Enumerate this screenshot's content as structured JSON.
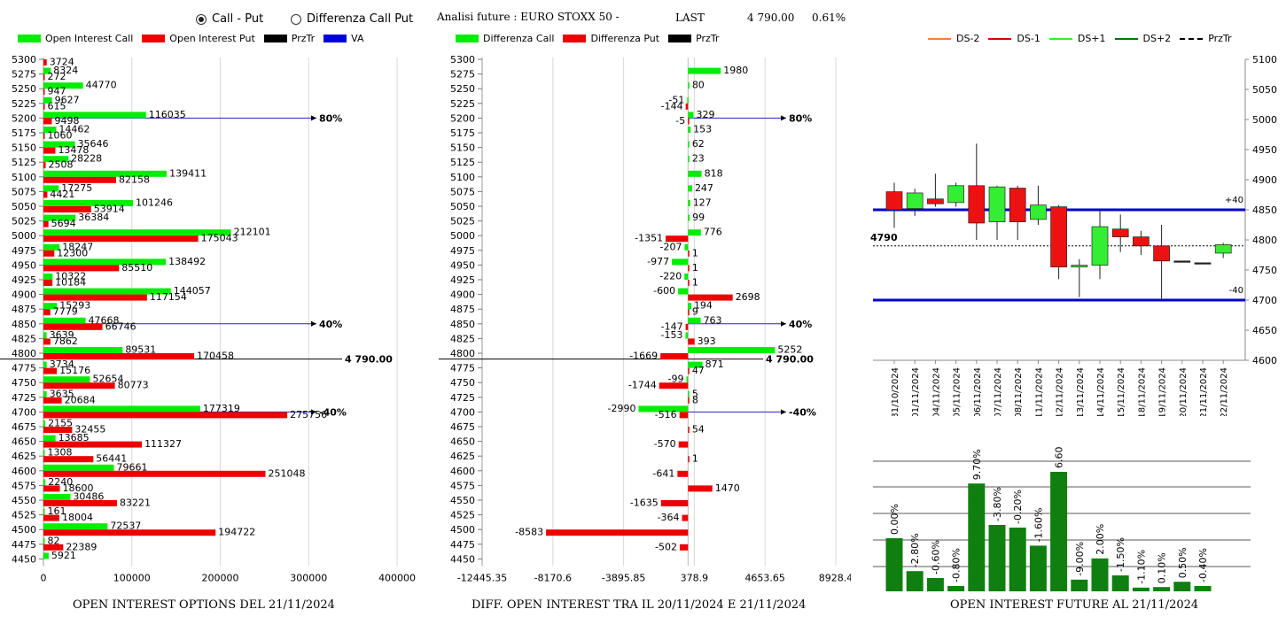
{
  "header": {
    "radio_call_put": "Call - Put",
    "radio_diff": "Differenza Call Put",
    "title": "Analisi future : EURO STOXX 50 -",
    "last_label": "LAST",
    "last_value": "4 790.00",
    "last_change": "0.61%"
  },
  "left": {
    "legend": [
      "Open Interest Call",
      "Open Interest Put",
      "PrzTr",
      "VA"
    ],
    "footer": "OPEN INTEREST OPTIONS DEL 21/11/2024"
  },
  "middle": {
    "legend": [
      "Differenza Call",
      "Differenza Put",
      "PrzTr"
    ],
    "footer": "DIFF. OPEN INTEREST TRA IL 20/11/2024 E 21/11/2024"
  },
  "right": {
    "legend": [
      "DS-2",
      "DS-1",
      "DS+1",
      "DS+2",
      "PrzTr"
    ],
    "footer": "OPEN INTEREST FUTURE AL 21/11/2024"
  },
  "chart_data": [
    {
      "type": "bar",
      "orientation": "horizontal",
      "strikes": [
        5300,
        5275,
        5250,
        5225,
        5200,
        5175,
        5150,
        5125,
        5100,
        5075,
        5050,
        5025,
        5000,
        4975,
        4950,
        4925,
        4900,
        4875,
        4850,
        4825,
        4800,
        4775,
        4750,
        4725,
        4700,
        4675,
        4650,
        4625,
        4600,
        4575,
        4550,
        4525,
        4500,
        4475,
        4450
      ],
      "series": [
        {
          "name": "Open Interest Call",
          "color": "#00ee00",
          "values": [
            null,
            8324,
            44770,
            9627,
            116035,
            14462,
            35646,
            28228,
            139411,
            17275,
            101246,
            36384,
            212101,
            18247,
            138492,
            10322,
            144057,
            15293,
            47668,
            3639,
            89531,
            3734,
            52654,
            3635,
            177319,
            2155,
            13685,
            1308,
            79661,
            2240,
            30486,
            161,
            72537,
            82,
            5921
          ]
        },
        {
          "name": "Open Interest Put",
          "color": "#ee0000",
          "values": [
            3724,
            272,
            947,
            615,
            9498,
            1060,
            13478,
            2508,
            82158,
            4421,
            53914,
            5694,
            175043,
            12300,
            85510,
            10184,
            117154,
            7779,
            66746,
            7862,
            170458,
            15176,
            80773,
            20684,
            275756,
            32455,
            111327,
            56441,
            251048,
            18600,
            83221,
            18004,
            194722,
            22389,
            null
          ]
        }
      ],
      "x_ticks": [
        "0",
        "100000",
        "200000",
        "300000",
        "400000"
      ],
      "xlim": [
        0,
        430000
      ],
      "annotations": [
        {
          "strike": 5200,
          "label": "80%"
        },
        {
          "strike": 4850,
          "label": "40%"
        },
        {
          "strike": 4700,
          "label": "-40%"
        },
        {
          "strike": 4790,
          "label": "4 790.00"
        }
      ]
    },
    {
      "type": "bar",
      "orientation": "horizontal",
      "strikes": [
        5300,
        5275,
        5250,
        5225,
        5200,
        5175,
        5150,
        5125,
        5100,
        5075,
        5050,
        5025,
        5000,
        4975,
        4950,
        4925,
        4900,
        4875,
        4850,
        4825,
        4800,
        4775,
        4750,
        4725,
        4700,
        4675,
        4650,
        4625,
        4600,
        4575,
        4550,
        4525,
        4500,
        4475,
        4450
      ],
      "series": [
        {
          "name": "Differenza Call",
          "color": "#00ee00",
          "values": [
            null,
            1980,
            80,
            -51,
            329,
            153,
            62,
            23,
            818,
            247,
            127,
            99,
            776,
            -207,
            -977,
            -220,
            -600,
            194,
            763,
            -153,
            5252,
            871,
            -99,
            5,
            -2990,
            null,
            null,
            null,
            null,
            null,
            null,
            null,
            null,
            null,
            null
          ]
        },
        {
          "name": "Differenza Put",
          "color": "#ee0000",
          "values": [
            null,
            null,
            null,
            -144,
            -5,
            null,
            null,
            null,
            null,
            null,
            null,
            null,
            -1351,
            1,
            1,
            1,
            2698,
            9,
            -147,
            393,
            -1669,
            47,
            -1744,
            8,
            -516,
            54,
            -570,
            1,
            -641,
            1470,
            -1635,
            -364,
            -8583,
            -502,
            null
          ]
        }
      ],
      "x_ticks": [
        "-12445.35",
        "-8170.6",
        "-3895.85",
        "378.9",
        "4653.65",
        "8928.4"
      ],
      "xlim": [
        -12445.35,
        8928.4
      ],
      "annotations": [
        {
          "strike": 5200,
          "label": "80%"
        },
        {
          "strike": 4850,
          "label": "40%"
        },
        {
          "strike": 4700,
          "label": "-40%"
        },
        {
          "strike": 4790,
          "label": "4 790.00"
        }
      ]
    },
    {
      "type": "candlestick",
      "dates": [
        "31/10/2024",
        "01/11/2024",
        "04/11/2024",
        "05/11/2024",
        "06/11/2024",
        "07/11/2024",
        "08/11/2024",
        "11/11/2024",
        "12/11/2024",
        "13/11/2024",
        "14/11/2024",
        "15/11/2024",
        "18/11/2024",
        "19/11/2024",
        "20/11/2024",
        "21/11/2024",
        "22/11/2024"
      ],
      "ohlc": [
        [
          4880,
          4895,
          4820,
          4850
        ],
        [
          4852,
          4885,
          4840,
          4878
        ],
        [
          4868,
          4910,
          4855,
          4860
        ],
        [
          4862,
          4895,
          4855,
          4890
        ],
        [
          4890,
          4960,
          4800,
          4828
        ],
        [
          4830,
          4890,
          4800,
          4888
        ],
        [
          4886,
          4890,
          4800,
          4830
        ],
        [
          4834,
          4890,
          4825,
          4858
        ],
        [
          4855,
          4858,
          4735,
          4755
        ],
        [
          4755,
          4768,
          4705,
          4758
        ],
        [
          4758,
          4850,
          4735,
          4822
        ],
        [
          4818,
          4842,
          4780,
          4805
        ],
        [
          4805,
          4815,
          4775,
          4790
        ],
        [
          4790,
          4825,
          4700,
          4765
        ],
        [
          4765,
          4765,
          4765,
          4765
        ],
        [
          4762,
          4762,
          4762,
          4762
        ],
        [
          4778,
          4795,
          4770,
          4792
        ]
      ],
      "y_ticks": [
        "4600",
        "4650",
        "4700",
        "4750",
        "4800",
        "4850",
        "4900",
        "4950",
        "5000",
        "5050",
        "5100"
      ],
      "ylim": [
        4600,
        5100
      ],
      "przTr": 4790,
      "przTr_label": "4790",
      "bands": [
        {
          "value": 4850,
          "label": "+40"
        },
        {
          "value": 4700,
          "label": "-40"
        }
      ]
    },
    {
      "type": "bar",
      "labels": [
        "0.00%",
        "-2.80%",
        "-0.60%",
        "-0.80%",
        "9.70%",
        "-3.80%",
        "-0.20%",
        "-1.60%",
        "6.60%",
        "-9.00%",
        "2.00%",
        "-1.50%",
        "-1.10%",
        "0.10%",
        "0.50%",
        "-0.40%"
      ],
      "values": [
        100,
        38,
        25,
        10,
        203,
        125,
        120,
        86,
        225,
        22,
        62,
        30,
        7,
        8,
        18,
        10
      ]
    }
  ]
}
